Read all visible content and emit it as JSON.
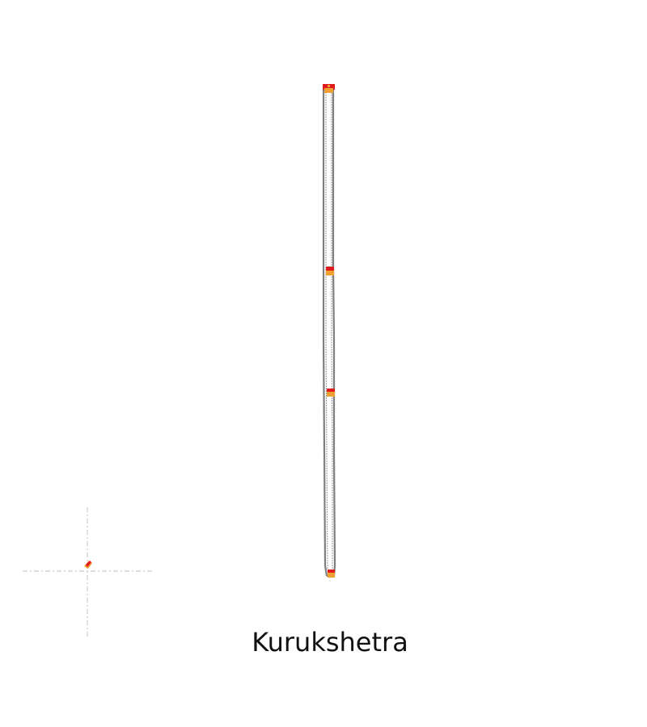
{
  "map": {
    "title": "Kurukshetra"
  },
  "colors": {
    "background": "#ffffff",
    "route_line": "#7f7f7f",
    "route_line_inner": "#9a9a9a",
    "marker_primary": "#e01b1b",
    "marker_secondary": "#f0a030",
    "crosshair": "#cccccc",
    "title_text": "#111111"
  },
  "icons": {
    "station_marker": "station-marker-icon",
    "locator": "locator-icon"
  }
}
